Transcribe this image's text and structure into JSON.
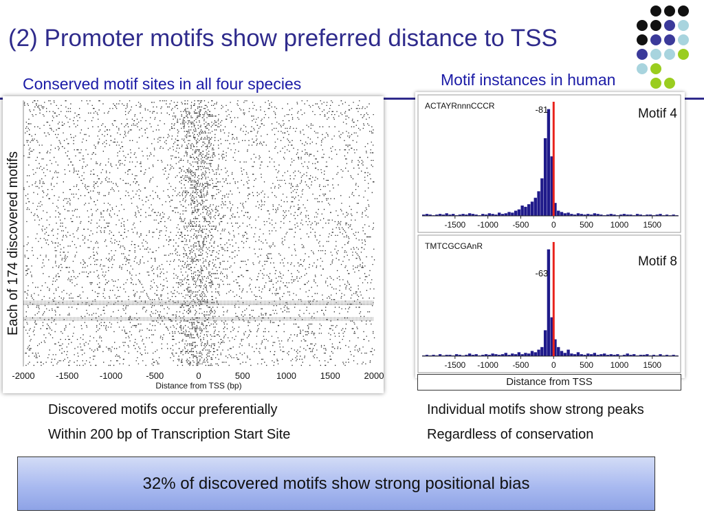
{
  "slide": {
    "title": "(2) Promoter motifs show preferred distance to TSS",
    "left_subtitle": "Conserved motif sites in all four species",
    "right_subtitle": "Motif instances in human",
    "left_notes": [
      "Discovered motifs occur preferentially",
      "Within 200 bp of Transcription Start Site"
    ],
    "right_notes": [
      "Individual motifs show strong peaks",
      "Regardless of conservation"
    ],
    "caption": "32% of discovered motifs show strong positional bias",
    "colors": {
      "title": "#2f2b8c",
      "subtitle": "#1a1aa6",
      "bar": "#1f1a8a",
      "tss_line": "#e8231c",
      "caption_bg": "#a9baf0"
    },
    "decoration_dot_colors": [
      "#111111",
      "#3b3a9a",
      "#a8d4de",
      "#9acd1f"
    ]
  },
  "chart_data": [
    {
      "type": "scatter",
      "title": "",
      "xlabel": "Distance from TSS (bp)",
      "ylabel": "Each of 174 discovered motifs",
      "xlim": [
        -2000,
        2000
      ],
      "x_ticks": [
        "-2000",
        "-1500",
        "-1000",
        "-500",
        "0",
        "500",
        "1000",
        "1500",
        "2000"
      ],
      "rows": 174,
      "description_of_density": "motif site positions per row; density highest within about 200 bp of TSS (0)"
    },
    {
      "type": "bar",
      "motif_label": "Motif 4",
      "sequence": "ACTAYRnnnCCCR",
      "peak_label": "-81",
      "peak_position": -81,
      "xlim": [
        -2000,
        1900
      ],
      "x_ticks": [
        "-1500",
        "-1000",
        "-500",
        "0",
        "500",
        "1000",
        "1500"
      ],
      "tss_line_x": 0,
      "bin_width": 50,
      "x": [
        -2000,
        -1950,
        -1900,
        -1850,
        -1800,
        -1750,
        -1700,
        -1650,
        -1600,
        -1550,
        -1500,
        -1450,
        -1400,
        -1350,
        -1300,
        -1250,
        -1200,
        -1150,
        -1100,
        -1050,
        -1000,
        -950,
        -900,
        -850,
        -800,
        -750,
        -700,
        -650,
        -600,
        -550,
        -500,
        -450,
        -400,
        -350,
        -300,
        -250,
        -200,
        -150,
        -100,
        -50,
        0,
        50,
        100,
        150,
        200,
        250,
        300,
        350,
        400,
        450,
        500,
        550,
        600,
        650,
        700,
        750,
        800,
        850,
        900,
        950,
        1000,
        1050,
        1100,
        1150,
        1200,
        1250,
        1300,
        1350,
        1400,
        1450,
        1500,
        1550,
        1600,
        1650,
        1700,
        1750,
        1800,
        1850
      ],
      "values": [
        2,
        3,
        2,
        1,
        2,
        3,
        2,
        4,
        2,
        3,
        1,
        2,
        3,
        2,
        4,
        3,
        2,
        1,
        3,
        2,
        4,
        3,
        2,
        5,
        3,
        4,
        6,
        5,
        8,
        10,
        16,
        14,
        18,
        22,
        28,
        38,
        58,
        120,
        165,
        92,
        20,
        8,
        6,
        4,
        5,
        3,
        2,
        4,
        3,
        2,
        3,
        2,
        4,
        3,
        2,
        1,
        2,
        3,
        2,
        1,
        2,
        3,
        2,
        2,
        1,
        3,
        2,
        1,
        2,
        2,
        1,
        2,
        3,
        1,
        2,
        1,
        2,
        1
      ],
      "ylim": [
        0,
        170
      ]
    },
    {
      "type": "bar",
      "motif_label": "Motif 8",
      "sequence": "TMTCGCGAnR",
      "peak_label": "-63",
      "peak_position": -63,
      "xlim": [
        -2000,
        1900
      ],
      "x_ticks": [
        "-1500",
        "-1000",
        "-500",
        "0",
        "500",
        "1000",
        "1500"
      ],
      "tss_line_x": 0,
      "bin_width": 50,
      "xlabel": "Distance from TSS",
      "x": [
        -2000,
        -1950,
        -1900,
        -1850,
        -1800,
        -1750,
        -1700,
        -1650,
        -1600,
        -1550,
        -1500,
        -1450,
        -1400,
        -1350,
        -1300,
        -1250,
        -1200,
        -1150,
        -1100,
        -1050,
        -1000,
        -950,
        -900,
        -850,
        -800,
        -750,
        -700,
        -650,
        -600,
        -550,
        -500,
        -450,
        -400,
        -350,
        -300,
        -250,
        -200,
        -150,
        -100,
        -50,
        0,
        50,
        100,
        150,
        200,
        250,
        300,
        350,
        400,
        450,
        500,
        550,
        600,
        650,
        700,
        750,
        800,
        850,
        900,
        950,
        1000,
        1050,
        1100,
        1150,
        1200,
        1250,
        1300,
        1350,
        1400,
        1450,
        1500,
        1550,
        1600,
        1650,
        1700,
        1750,
        1800,
        1850
      ],
      "values": [
        1,
        2,
        1,
        2,
        1,
        3,
        1,
        2,
        2,
        1,
        3,
        2,
        1,
        2,
        4,
        2,
        3,
        1,
        2,
        3,
        2,
        4,
        3,
        2,
        3,
        5,
        2,
        4,
        3,
        6,
        3,
        5,
        4,
        8,
        6,
        10,
        14,
        40,
        165,
        60,
        26,
        14,
        8,
        5,
        10,
        4,
        3,
        6,
        3,
        2,
        4,
        3,
        5,
        2,
        3,
        4,
        2,
        3,
        2,
        3,
        1,
        2,
        4,
        2,
        3,
        1,
        2,
        2,
        3,
        1,
        2,
        1,
        3,
        1,
        2,
        1,
        2,
        1
      ],
      "ylim": [
        0,
        170
      ]
    }
  ]
}
